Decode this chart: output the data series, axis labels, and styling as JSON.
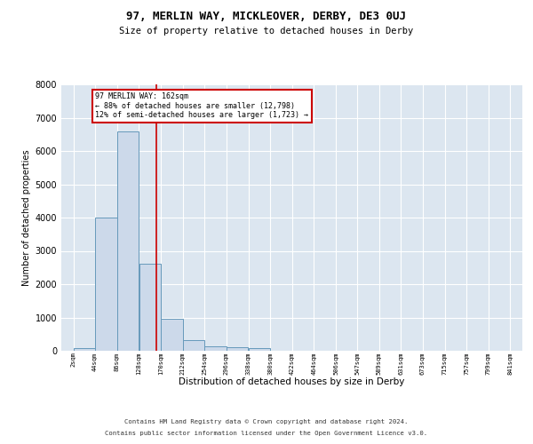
{
  "title_main": "97, MERLIN WAY, MICKLEOVER, DERBY, DE3 0UJ",
  "title_sub": "Size of property relative to detached houses in Derby",
  "xlabel": "Distribution of detached houses by size in Derby",
  "ylabel": "Number of detached properties",
  "bar_color": "#ccd9ea",
  "bar_edge_color": "#6699bb",
  "marker_line_color": "#cc0000",
  "marker_value": 162,
  "annotation_line1": "97 MERLIN WAY: 162sqm",
  "annotation_line2": "← 88% of detached houses are smaller (12,798)",
  "annotation_line3": "12% of semi-detached houses are larger (1,723) →",
  "annotation_box_color": "#ffffff",
  "annotation_box_edge_color": "#cc0000",
  "bin_edges": [
    2,
    44,
    86,
    128,
    170,
    212,
    254,
    296,
    338,
    380,
    422,
    464,
    506,
    547,
    589,
    631,
    673,
    715,
    757,
    799,
    841
  ],
  "bar_heights": [
    80,
    4000,
    6580,
    2620,
    960,
    310,
    130,
    110,
    90,
    0,
    0,
    0,
    0,
    0,
    0,
    0,
    0,
    0,
    0,
    0
  ],
  "ylim": [
    0,
    8000
  ],
  "yticks": [
    0,
    1000,
    2000,
    3000,
    4000,
    5000,
    6000,
    7000,
    8000
  ],
  "footer_line1": "Contains HM Land Registry data © Crown copyright and database right 2024.",
  "footer_line2": "Contains public sector information licensed under the Open Government Licence v3.0.",
  "plot_bg_color": "#dce6f0"
}
